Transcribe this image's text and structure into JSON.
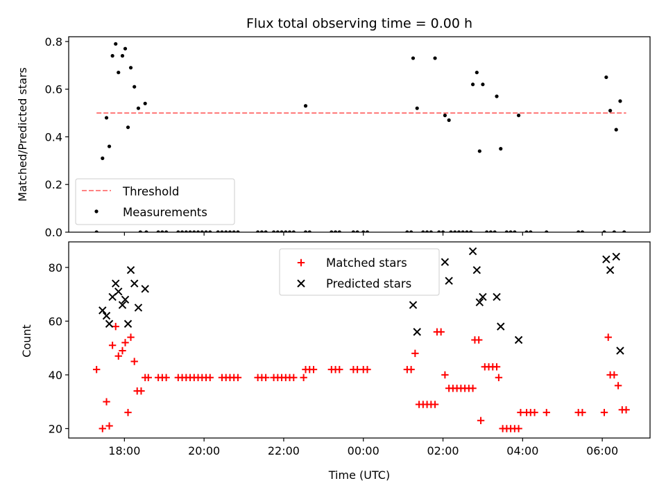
{
  "chart_data": [
    {
      "type": "scatter",
      "title": "Flux total observing time = 0.00 h",
      "xlabel": "",
      "ylabel": "Matched/Predicted stars",
      "ylim": [
        0,
        0.82
      ],
      "yticks": [
        0.0,
        0.2,
        0.4,
        0.6,
        0.8
      ],
      "ytick_labels": [
        "0.0",
        "0.2",
        "0.4",
        "0.6",
        "0.8"
      ],
      "x_unit": "hours since 18:00 UTC",
      "xlim": [
        -1.4,
        13.2
      ],
      "threshold": {
        "name": "Threshold",
        "value": 0.5,
        "x_start": -0.7,
        "x_end": 12.6,
        "color": "#ff7070",
        "style": "dashed"
      },
      "series": [
        {
          "name": "Measurements",
          "color": "#000000",
          "marker": "dot",
          "points": [
            [
              -0.55,
              0.31
            ],
            [
              -0.45,
              0.48
            ],
            [
              -0.38,
              0.36
            ],
            [
              -0.3,
              0.74
            ],
            [
              -0.22,
              0.79
            ],
            [
              -0.15,
              0.67
            ],
            [
              -0.05,
              0.74
            ],
            [
              0.02,
              0.77
            ],
            [
              0.09,
              0.44
            ],
            [
              0.16,
              0.69
            ],
            [
              0.25,
              0.61
            ],
            [
              0.35,
              0.52
            ],
            [
              0.52,
              0.54
            ],
            [
              4.55,
              0.53
            ],
            [
              7.25,
              0.73
            ],
            [
              7.35,
              0.52
            ],
            [
              7.8,
              0.73
            ],
            [
              8.05,
              0.49
            ],
            [
              8.15,
              0.47
            ],
            [
              8.75,
              0.62
            ],
            [
              8.85,
              0.67
            ],
            [
              8.92,
              0.34
            ],
            [
              9.0,
              0.62
            ],
            [
              9.35,
              0.57
            ],
            [
              9.45,
              0.35
            ],
            [
              9.9,
              0.49
            ],
            [
              12.1,
              0.65
            ],
            [
              12.2,
              0.51
            ],
            [
              12.35,
              0.43
            ],
            [
              12.45,
              0.55
            ],
            [
              -0.7,
              0.0
            ],
            [
              0.4,
              0.0
            ],
            [
              0.55,
              0.0
            ],
            [
              0.85,
              0.0
            ],
            [
              0.95,
              0.0
            ],
            [
              1.05,
              0.0
            ],
            [
              1.35,
              0.0
            ],
            [
              1.45,
              0.0
            ],
            [
              1.55,
              0.0
            ],
            [
              1.65,
              0.0
            ],
            [
              1.75,
              0.0
            ],
            [
              1.85,
              0.0
            ],
            [
              1.95,
              0.0
            ],
            [
              2.05,
              0.0
            ],
            [
              2.15,
              0.0
            ],
            [
              2.35,
              0.0
            ],
            [
              2.45,
              0.0
            ],
            [
              2.55,
              0.0
            ],
            [
              2.65,
              0.0
            ],
            [
              2.75,
              0.0
            ],
            [
              2.85,
              0.0
            ],
            [
              3.35,
              0.0
            ],
            [
              3.45,
              0.0
            ],
            [
              3.55,
              0.0
            ],
            [
              3.75,
              0.0
            ],
            [
              3.85,
              0.0
            ],
            [
              3.95,
              0.0
            ],
            [
              4.05,
              0.0
            ],
            [
              4.15,
              0.0
            ],
            [
              4.25,
              0.0
            ],
            [
              4.55,
              0.0
            ],
            [
              4.65,
              0.0
            ],
            [
              5.2,
              0.0
            ],
            [
              5.3,
              0.0
            ],
            [
              5.4,
              0.0
            ],
            [
              5.75,
              0.0
            ],
            [
              5.85,
              0.0
            ],
            [
              6.0,
              0.0
            ],
            [
              6.1,
              0.0
            ],
            [
              7.1,
              0.0
            ],
            [
              7.2,
              0.0
            ],
            [
              7.5,
              0.0
            ],
            [
              7.6,
              0.0
            ],
            [
              7.7,
              0.0
            ],
            [
              7.9,
              0.0
            ],
            [
              8.0,
              0.0
            ],
            [
              8.2,
              0.0
            ],
            [
              8.3,
              0.0
            ],
            [
              8.4,
              0.0
            ],
            [
              8.5,
              0.0
            ],
            [
              8.6,
              0.0
            ],
            [
              8.7,
              0.0
            ],
            [
              9.1,
              0.0
            ],
            [
              9.2,
              0.0
            ],
            [
              9.3,
              0.0
            ],
            [
              9.6,
              0.0
            ],
            [
              9.7,
              0.0
            ],
            [
              9.8,
              0.0
            ],
            [
              10.1,
              0.0
            ],
            [
              10.2,
              0.0
            ],
            [
              10.6,
              0.0
            ],
            [
              11.4,
              0.0
            ],
            [
              11.5,
              0.0
            ],
            [
              12.05,
              0.0
            ],
            [
              12.3,
              0.0
            ],
            [
              12.55,
              0.0
            ]
          ]
        }
      ],
      "legend": {
        "placement": "lower-left",
        "entries": [
          "Threshold",
          "Measurements"
        ]
      },
      "grid": false
    },
    {
      "type": "scatter",
      "title": "",
      "xlabel": "Time (UTC)",
      "ylabel": "Count",
      "ylim": [
        16.5,
        89.5
      ],
      "yticks": [
        20,
        40,
        60,
        80
      ],
      "ytick_labels": [
        "20",
        "40",
        "60",
        "80"
      ],
      "x_unit": "hours since 18:00 UTC",
      "xlim": [
        -1.4,
        13.2
      ],
      "xticks": [
        0,
        2,
        4,
        6,
        8,
        10,
        12
      ],
      "xtick_labels": [
        "18:00",
        "20:00",
        "22:00",
        "00:00",
        "02:00",
        "04:00",
        "06:00"
      ],
      "series": [
        {
          "name": "Matched stars",
          "color": "#ff0000",
          "marker": "plus",
          "points": [
            [
              -0.7,
              42
            ],
            [
              -0.55,
              20
            ],
            [
              -0.45,
              30
            ],
            [
              -0.38,
              21
            ],
            [
              -0.3,
              51
            ],
            [
              -0.22,
              58
            ],
            [
              -0.15,
              47
            ],
            [
              -0.05,
              49
            ],
            [
              0.02,
              52
            ],
            [
              0.09,
              26
            ],
            [
              0.16,
              54
            ],
            [
              0.25,
              45
            ],
            [
              0.32,
              34
            ],
            [
              0.42,
              34
            ],
            [
              0.52,
              39
            ],
            [
              0.6,
              39
            ],
            [
              0.85,
              39
            ],
            [
              0.95,
              39
            ],
            [
              1.05,
              39
            ],
            [
              1.35,
              39
            ],
            [
              1.45,
              39
            ],
            [
              1.55,
              39
            ],
            [
              1.65,
              39
            ],
            [
              1.75,
              39
            ],
            [
              1.85,
              39
            ],
            [
              1.95,
              39
            ],
            [
              2.05,
              39
            ],
            [
              2.15,
              39
            ],
            [
              2.45,
              39
            ],
            [
              2.55,
              39
            ],
            [
              2.65,
              39
            ],
            [
              2.75,
              39
            ],
            [
              2.85,
              39
            ],
            [
              3.35,
              39
            ],
            [
              3.45,
              39
            ],
            [
              3.55,
              39
            ],
            [
              3.75,
              39
            ],
            [
              3.85,
              39
            ],
            [
              3.95,
              39
            ],
            [
              4.05,
              39
            ],
            [
              4.15,
              39
            ],
            [
              4.25,
              39
            ],
            [
              4.5,
              39
            ],
            [
              4.55,
              42
            ],
            [
              4.65,
              42
            ],
            [
              4.75,
              42
            ],
            [
              5.2,
              42
            ],
            [
              5.3,
              42
            ],
            [
              5.4,
              42
            ],
            [
              5.75,
              42
            ],
            [
              5.85,
              42
            ],
            [
              6.0,
              42
            ],
            [
              6.1,
              42
            ],
            [
              7.1,
              42
            ],
            [
              7.2,
              42
            ],
            [
              7.3,
              48
            ],
            [
              7.4,
              29
            ],
            [
              7.5,
              29
            ],
            [
              7.6,
              29
            ],
            [
              7.7,
              29
            ],
            [
              7.8,
              29
            ],
            [
              7.85,
              56
            ],
            [
              7.95,
              56
            ],
            [
              8.05,
              40
            ],
            [
              8.15,
              35
            ],
            [
              8.25,
              35
            ],
            [
              8.35,
              35
            ],
            [
              8.45,
              35
            ],
            [
              8.55,
              35
            ],
            [
              8.65,
              35
            ],
            [
              8.75,
              35
            ],
            [
              8.8,
              53
            ],
            [
              8.9,
              53
            ],
            [
              8.95,
              23
            ],
            [
              9.05,
              43
            ],
            [
              9.15,
              43
            ],
            [
              9.25,
              43
            ],
            [
              9.35,
              43
            ],
            [
              9.4,
              39
            ],
            [
              9.5,
              20
            ],
            [
              9.6,
              20
            ],
            [
              9.7,
              20
            ],
            [
              9.8,
              20
            ],
            [
              9.9,
              20
            ],
            [
              9.95,
              26
            ],
            [
              10.1,
              26
            ],
            [
              10.2,
              26
            ],
            [
              10.3,
              26
            ],
            [
              10.6,
              26
            ],
            [
              11.4,
              26
            ],
            [
              11.5,
              26
            ],
            [
              12.05,
              26
            ],
            [
              12.15,
              54
            ],
            [
              12.2,
              40
            ],
            [
              12.3,
              40
            ],
            [
              12.4,
              36
            ],
            [
              12.5,
              27
            ],
            [
              12.6,
              27
            ]
          ]
        },
        {
          "name": "Predicted stars",
          "color": "#000000",
          "marker": "x",
          "points": [
            [
              -0.55,
              64
            ],
            [
              -0.45,
              62
            ],
            [
              -0.38,
              59
            ],
            [
              -0.3,
              69
            ],
            [
              -0.22,
              74
            ],
            [
              -0.15,
              71
            ],
            [
              -0.05,
              66
            ],
            [
              0.02,
              68
            ],
            [
              0.09,
              59
            ],
            [
              0.16,
              79
            ],
            [
              0.25,
              74
            ],
            [
              0.35,
              65
            ],
            [
              0.52,
              72
            ],
            [
              7.25,
              66
            ],
            [
              7.35,
              56
            ],
            [
              8.05,
              82
            ],
            [
              8.15,
              75
            ],
            [
              8.75,
              86
            ],
            [
              8.85,
              79
            ],
            [
              8.92,
              67
            ],
            [
              9.0,
              69
            ],
            [
              9.35,
              69
            ],
            [
              9.45,
              58
            ],
            [
              9.9,
              53
            ],
            [
              12.1,
              83
            ],
            [
              12.2,
              79
            ],
            [
              12.35,
              84
            ],
            [
              12.45,
              49
            ]
          ]
        }
      ],
      "legend": {
        "placement": "upper-center",
        "entries": [
          "Matched stars",
          "Predicted stars"
        ]
      },
      "grid": false
    }
  ]
}
